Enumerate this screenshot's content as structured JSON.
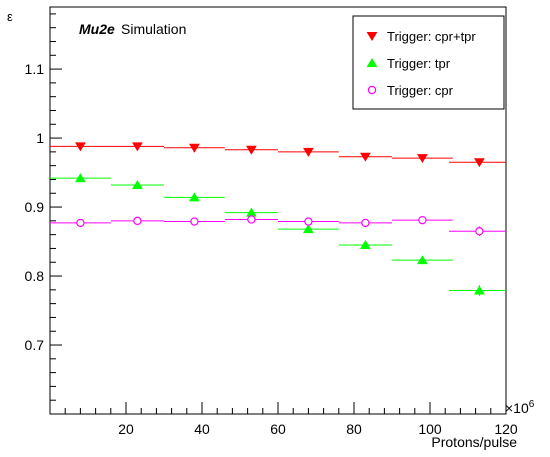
{
  "chart_data": {
    "type": "scatter",
    "annotation_bold": "Mu2e",
    "annotation": "Simulation",
    "xlabel": "Protons/pulse",
    "x_multiplier": "×10",
    "x_multiplier_exponent": "6",
    "ylabel": "ε",
    "xlim": [
      0,
      120
    ],
    "ylim": [
      0.6,
      1.19
    ],
    "xticks": [
      20,
      40,
      60,
      80,
      100,
      120
    ],
    "yticks": [
      0.7,
      0.8,
      0.9,
      1.0,
      1.1
    ],
    "ytick_labels": [
      "0.7",
      "0.8",
      "0.9",
      "1",
      "1.1"
    ],
    "grid": false,
    "legend_position": "top-right",
    "series": [
      {
        "name": "Trigger: cpr+tpr",
        "marker": "triangle-down",
        "color": "#ff0000",
        "x": [
          8,
          23,
          38,
          53,
          68,
          83,
          98,
          113
        ],
        "xerr": [
          8,
          7,
          8,
          7,
          8,
          7,
          8,
          8
        ],
        "y": [
          0.988,
          0.988,
          0.986,
          0.983,
          0.98,
          0.973,
          0.971,
          0.965
        ],
        "yerr": [
          0.002,
          0.002,
          0.002,
          0.002,
          0.002,
          0.003,
          0.003,
          0.003
        ]
      },
      {
        "name": "Trigger: tpr",
        "marker": "triangle-up",
        "color": "#00ff00",
        "x": [
          8,
          23,
          38,
          53,
          68,
          83,
          98,
          113
        ],
        "xerr": [
          8,
          7,
          8,
          7,
          8,
          7,
          8,
          8
        ],
        "y": [
          0.942,
          0.932,
          0.914,
          0.892,
          0.868,
          0.845,
          0.823,
          0.779
        ],
        "yerr": [
          0.003,
          0.003,
          0.003,
          0.004,
          0.004,
          0.005,
          0.006,
          0.008
        ]
      },
      {
        "name": "Trigger: cpr",
        "marker": "open-circle",
        "color": "#ff00ff",
        "x": [
          8,
          23,
          38,
          53,
          68,
          83,
          98,
          113
        ],
        "xerr": [
          8,
          7,
          8,
          7,
          8,
          7,
          8,
          8
        ],
        "y": [
          0.877,
          0.88,
          0.879,
          0.882,
          0.879,
          0.877,
          0.881,
          0.865
        ],
        "yerr": [
          0.003,
          0.003,
          0.003,
          0.003,
          0.003,
          0.004,
          0.005,
          0.007
        ]
      }
    ]
  }
}
